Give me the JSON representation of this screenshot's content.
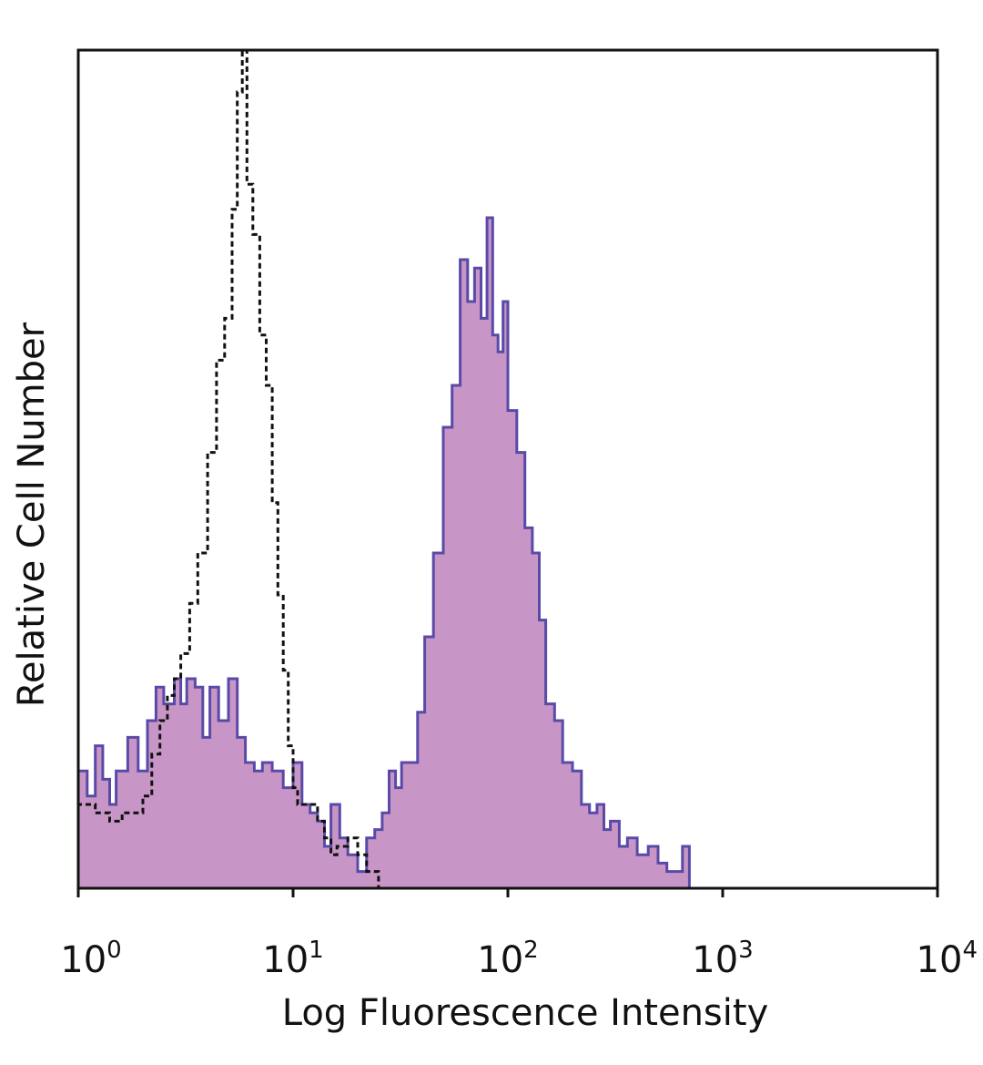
{
  "chart_data": {
    "type": "histogram",
    "title": "",
    "xlabel": "Log Fluorescence Intensity",
    "ylabel": "Relative Cell Number",
    "x_scale": "log",
    "xlim": [
      1,
      10000
    ],
    "ylim": [
      0,
      1
    ],
    "y_ticks_shown": false,
    "grid": false,
    "legend": "none",
    "x_ticks": [
      {
        "value": 1,
        "base": "10",
        "exp": "0"
      },
      {
        "value": 10,
        "base": "10",
        "exp": "1"
      },
      {
        "value": 100,
        "base": "10",
        "exp": "2"
      },
      {
        "value": 1000,
        "base": "10",
        "exp": "3"
      },
      {
        "value": 10000,
        "base": "10",
        "exp": "4"
      }
    ],
    "series": [
      {
        "style": "filled",
        "fill_color": "#c896c6",
        "line_color": "#5a4aa8",
        "x": [
          1,
          1.1,
          1.2,
          1.3,
          1.4,
          1.5,
          1.7,
          1.9,
          2.1,
          2.3,
          2.5,
          2.8,
          3.0,
          3.2,
          3.5,
          3.8,
          4.1,
          4.5,
          5.0,
          5.5,
          6.0,
          6.6,
          7.2,
          8.0,
          9.0,
          10,
          11,
          12,
          13,
          14,
          15,
          16.5,
          18,
          20,
          22,
          24,
          26,
          28,
          30,
          32,
          35,
          38,
          41,
          45,
          50,
          55,
          60,
          65,
          70,
          75,
          80,
          85,
          90,
          95,
          100,
          110,
          120,
          130,
          140,
          150,
          165,
          180,
          200,
          220,
          240,
          260,
          280,
          300,
          330,
          360,
          400,
          450,
          500,
          550,
          600,
          650,
          700
        ],
        "y": [
          0.14,
          0.11,
          0.17,
          0.13,
          0.1,
          0.14,
          0.18,
          0.14,
          0.2,
          0.24,
          0.22,
          0.25,
          0.22,
          0.25,
          0.24,
          0.18,
          0.24,
          0.2,
          0.25,
          0.18,
          0.15,
          0.14,
          0.15,
          0.14,
          0.12,
          0.15,
          0.1,
          0.09,
          0.08,
          0.05,
          0.1,
          0.06,
          0.04,
          0.02,
          0.06,
          0.07,
          0.09,
          0.14,
          0.12,
          0.15,
          0.15,
          0.21,
          0.3,
          0.4,
          0.55,
          0.6,
          0.75,
          0.7,
          0.74,
          0.68,
          0.8,
          0.66,
          0.64,
          0.7,
          0.57,
          0.52,
          0.43,
          0.4,
          0.32,
          0.22,
          0.2,
          0.15,
          0.14,
          0.1,
          0.09,
          0.1,
          0.07,
          0.08,
          0.05,
          0.06,
          0.04,
          0.05,
          0.03,
          0.02,
          0.02,
          0.05,
          0.0
        ]
      },
      {
        "style": "dashed",
        "line_color": "#111111",
        "x": [
          1,
          1.2,
          1.4,
          1.6,
          1.8,
          2.0,
          2.2,
          2.4,
          2.6,
          2.8,
          3.0,
          3.3,
          3.6,
          4.0,
          4.4,
          4.8,
          5.2,
          5.5,
          5.8,
          6.1,
          6.5,
          7.0,
          7.5,
          8.0,
          8.5,
          9.0,
          9.5,
          10,
          10.5,
          11,
          12,
          13,
          14,
          15,
          16,
          18,
          20,
          22,
          25
        ],
        "y": [
          0.1,
          0.09,
          0.08,
          0.09,
          0.09,
          0.11,
          0.16,
          0.2,
          0.23,
          0.25,
          0.28,
          0.34,
          0.4,
          0.52,
          0.63,
          0.68,
          0.81,
          0.95,
          1.0,
          0.84,
          0.78,
          0.66,
          0.6,
          0.46,
          0.35,
          0.26,
          0.17,
          0.12,
          0.1,
          0.1,
          0.1,
          0.08,
          0.06,
          0.04,
          0.05,
          0.06,
          0.04,
          0.02,
          0.0
        ]
      }
    ]
  }
}
